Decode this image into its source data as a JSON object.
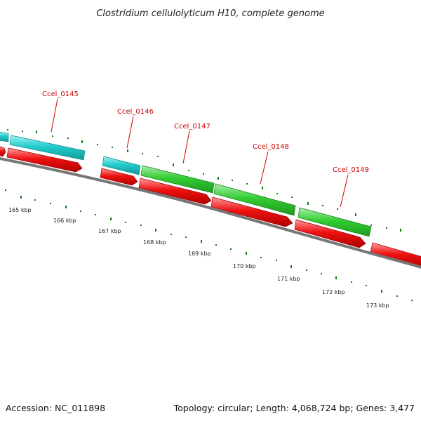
{
  "title": "Clostridium cellulolyticum H10, complete genome",
  "footer": {
    "accession": "Accession: NC_011898",
    "summary": "Topology: circular; Length: 4,068,724 bp; Genes: 3,477"
  },
  "colors": {
    "forward_cyan": "#22cccc",
    "forward_green": "#33cc33",
    "reverse_red": "#ee1111",
    "backbone": "#777777",
    "tick": "#117711",
    "label": "#cc0000"
  },
  "scale_labels": [
    "165 kbp",
    "166 kbp",
    "167 kbp",
    "168 kbp",
    "169 kbp",
    "170 kbp",
    "171 kbp",
    "172 kbp",
    "173 kbp"
  ],
  "gene_labels": [
    "Ccel_0145",
    "Ccel_0146",
    "Ccel_0147",
    "Ccel_0148",
    "Ccel_0149"
  ]
}
